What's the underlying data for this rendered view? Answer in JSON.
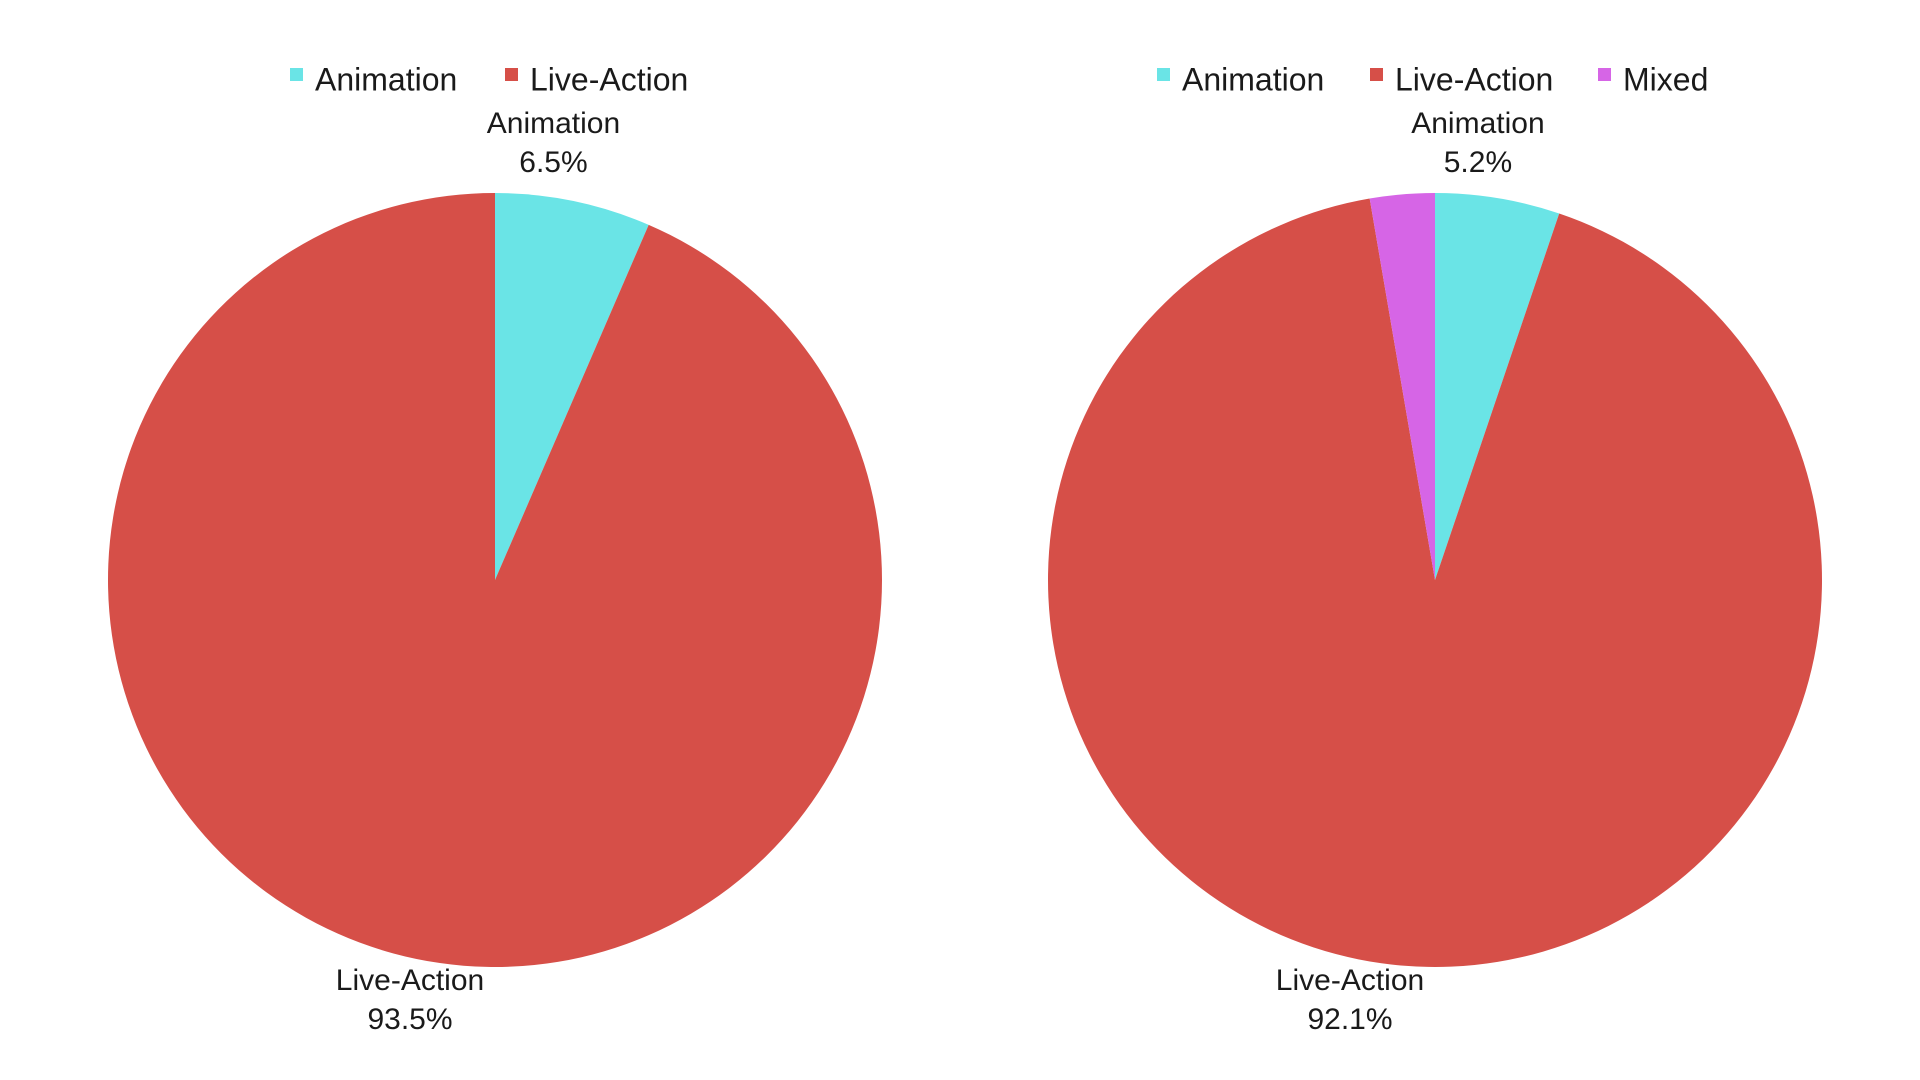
{
  "chart_data": [
    {
      "type": "pie",
      "legend": [
        "Animation",
        "Live-Action"
      ],
      "slices": [
        {
          "label": "Animation",
          "value": 6.5,
          "display": "6.5%",
          "color": "#6ae4e6",
          "show_label": true
        },
        {
          "label": "Live-Action",
          "value": 93.5,
          "display": "93.5%",
          "color": "#d64f48",
          "show_label": true
        }
      ],
      "legend_position": "top"
    },
    {
      "type": "pie",
      "legend": [
        "Animation",
        "Live-Action",
        "Mixed"
      ],
      "slices": [
        {
          "label": "Animation",
          "value": 5.2,
          "display": "5.2%",
          "color": "#6ae4e6",
          "show_label": true
        },
        {
          "label": "Live-Action",
          "value": 92.1,
          "display": "92.1%",
          "color": "#d64f48",
          "show_label": true
        },
        {
          "label": "Mixed",
          "value": 2.7,
          "display": "2.7%",
          "color": "#d665e6",
          "show_label": false
        }
      ],
      "legend_position": "top"
    }
  ]
}
